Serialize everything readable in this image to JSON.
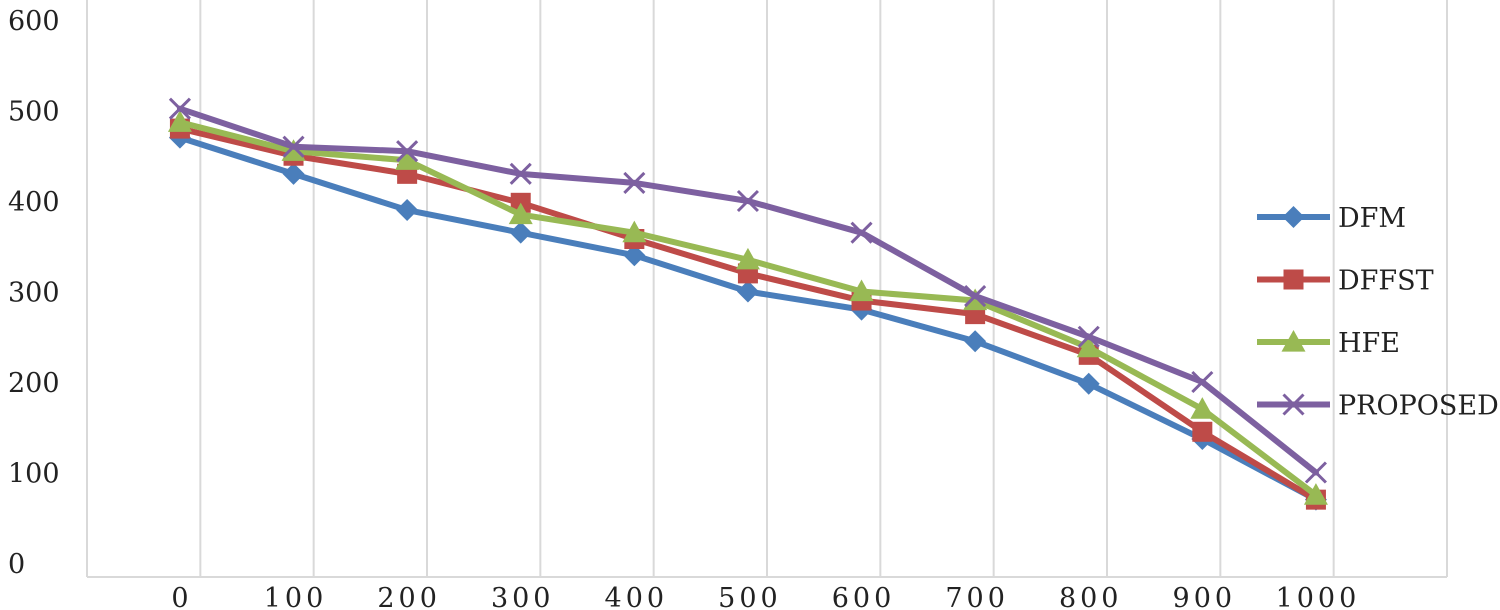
{
  "chart_data": {
    "type": "line",
    "title": "",
    "xlabel": "",
    "ylabel": "",
    "categories": [
      "0",
      "100",
      "200",
      "300",
      "400",
      "500",
      "600",
      "700",
      "800",
      "900",
      "1000"
    ],
    "ylim": [
      0,
      600
    ],
    "yticks": [
      0,
      100,
      200,
      300,
      400,
      500,
      600
    ],
    "grid": "vertical",
    "legend_position": "right",
    "series": [
      {
        "name": "DFM",
        "color": "#4a7ebb",
        "marker": "diamond",
        "values": [
          470,
          430,
          390,
          365,
          340,
          300,
          280,
          245,
          198,
          137,
          70
        ]
      },
      {
        "name": "DFFST",
        "color": "#be4b48",
        "marker": "square",
        "values": [
          480,
          450,
          430,
          398,
          358,
          320,
          290,
          275,
          230,
          145,
          70
        ]
      },
      {
        "name": "HFE",
        "color": "#98b954",
        "marker": "triangle",
        "values": [
          487,
          455,
          445,
          385,
          365,
          335,
          300,
          290,
          238,
          170,
          75
        ]
      },
      {
        "name": "PROPOSED",
        "color": "#7d60a0",
        "marker": "x",
        "values": [
          502,
          460,
          455,
          430,
          420,
          400,
          365,
          295,
          250,
          200,
          100
        ]
      }
    ]
  }
}
